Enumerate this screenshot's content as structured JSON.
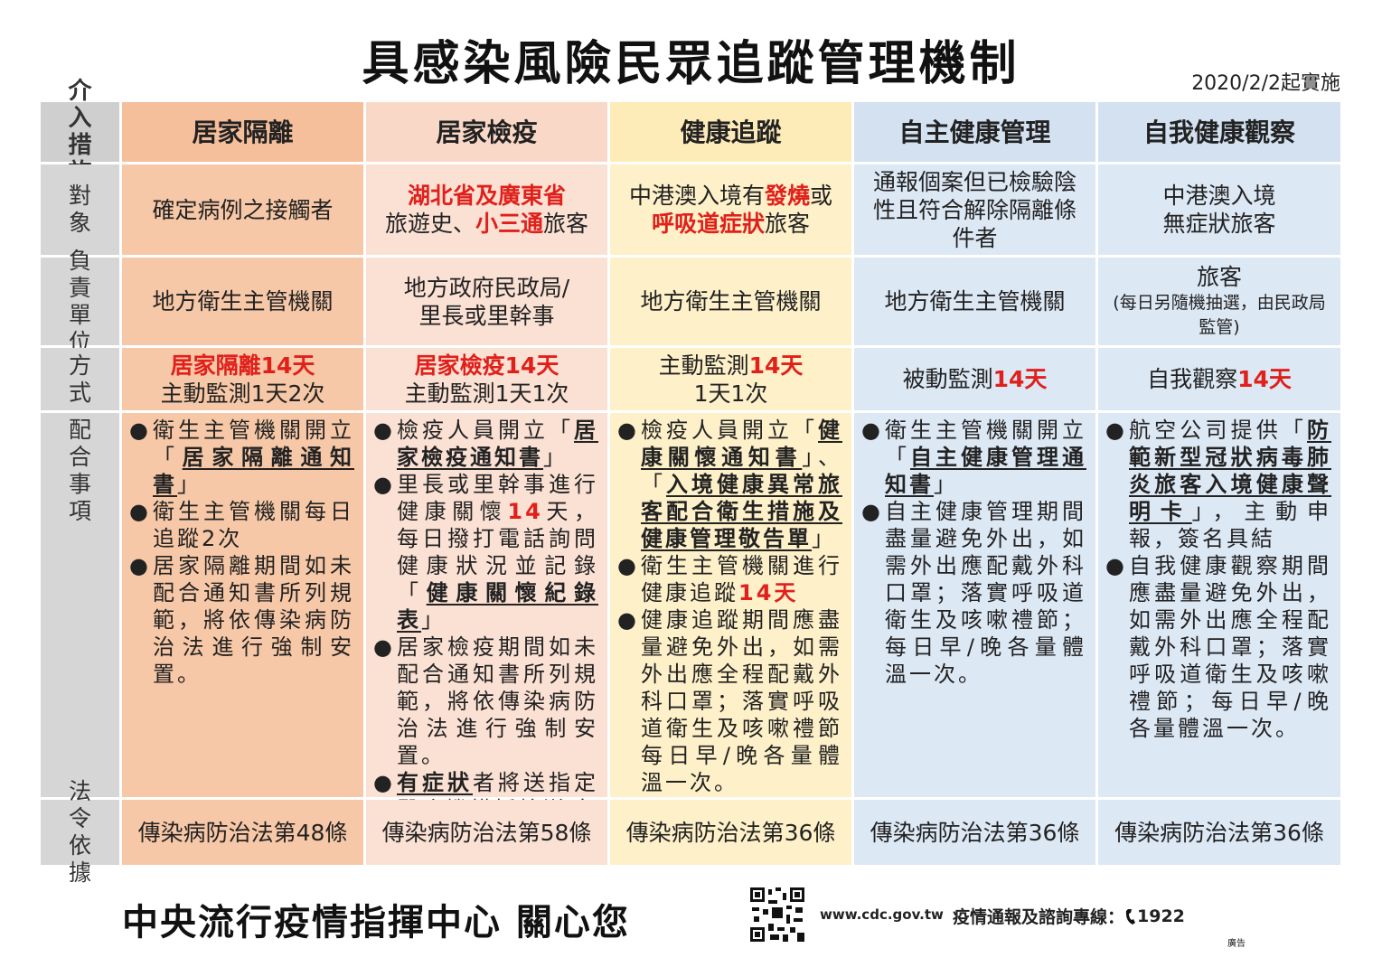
{
  "title": "具感染風險民眾追蹤管理機制",
  "effective_date": "2020/2/2起實施",
  "table": {
    "header": [
      "介入措施",
      "居家隔離",
      "居家檢疫",
      "健康追蹤",
      "自主健康管理",
      "自我健康觀察"
    ],
    "rows": [
      {
        "label": "對象",
        "cells": [
          [
            [
              "確定病例之接觸者"
            ]
          ],
          [
            [
              {
                "text": "湖北省及廣東省",
                "color": "#e0201b",
                "bold": true
              }
            ],
            [
              "旅遊史、",
              {
                "text": "小三通",
                "color": "#e0201b",
                "bold": true
              },
              "旅客"
            ]
          ],
          [
            [
              "中港澳入境有",
              {
                "text": "發燒",
                "color": "#e0201b",
                "bold": true
              },
              "或"
            ],
            [
              {
                "text": "呼吸道症狀",
                "color": "#e0201b",
                "bold": true
              },
              "旅客"
            ]
          ],
          [
            [
              "通報個案但已檢驗陰性且符合解除隔離條件者"
            ]
          ],
          [
            [
              "中港澳入境"
            ],
            [
              "無症狀旅客"
            ]
          ]
        ]
      },
      {
        "label": "負責單位",
        "cells": [
          [
            [
              "地方衛生主管機關"
            ]
          ],
          [
            [
              "地方政府民政局/"
            ],
            [
              "里長或里幹事"
            ]
          ],
          [
            [
              "地方衛生主管機關"
            ]
          ],
          [
            [
              "地方衛生主管機關"
            ]
          ],
          [
            [
              "旅客"
            ],
            [
              {
                "text": "(每日另隨機抽選，由民政局監管)",
                "small": true
              }
            ]
          ]
        ]
      },
      {
        "label": "方式",
        "cells": [
          [
            [
              {
                "text": "居家隔離14天",
                "color": "#e0201b",
                "bold": true
              }
            ],
            [
              "主動監測1天2次"
            ]
          ],
          [
            [
              {
                "text": "居家檢疫14天",
                "color": "#e0201b",
                "bold": true
              }
            ],
            [
              "主動監測1天1次"
            ]
          ],
          [
            [
              "主動監測",
              {
                "text": "14天",
                "color": "#e0201b",
                "bold": true
              }
            ],
            [
              "1天1次"
            ]
          ],
          [
            [
              "被動監測",
              {
                "text": "14天",
                "color": "#e0201b",
                "bold": true
              }
            ]
          ],
          [
            [
              "自我觀察",
              {
                "text": "14天",
                "color": "#e0201b",
                "bold": true
              }
            ]
          ]
        ]
      },
      {
        "label": "配合事項",
        "bullets": [
          [
            [
              "衛生主管機關開立「",
              {
                "text": "居家隔離通知書",
                "bold": true,
                "underline": true
              },
              "」"
            ],
            [
              "衛生主管機關每日追蹤2次"
            ],
            [
              "居家隔離期間如未配合通知書所列規範，將依傳染病防治法進行強制安置。"
            ]
          ],
          [
            [
              "檢疫人員開立「",
              {
                "text": "居家檢疫通知書",
                "bold": true,
                "underline": true
              },
              "」"
            ],
            [
              "里長或里幹事進行健康關懷",
              {
                "text": "14",
                "color": "#e0201b",
                "bold": true
              },
              "天，每日撥打電話詢問健康狀況並記錄「",
              {
                "text": "健康關懷紀錄表",
                "bold": true,
                "underline": true
              },
              "」"
            ],
            [
              "居家檢疫期間如未配合通知書所列規範，將依傳染病防治法進行強制安置。"
            ],
            [
              {
                "text": "有症狀",
                "bold": true,
                "underline": true
              },
              "者將送指定醫療機構採檢送驗"
            ]
          ],
          [
            [
              "檢疫人員開立「",
              {
                "text": "健康關懷通知書",
                "bold": true,
                "underline": true
              },
              "」、「",
              {
                "text": "入境健康異常旅客配合衛生措施及健康管理敬告單",
                "bold": true,
                "underline": true
              },
              "」"
            ],
            [
              "衛生主管機關進行健康追蹤",
              {
                "text": "14天",
                "color": "#e0201b",
                "bold": true
              }
            ],
            [
              "健康追蹤期間應盡量避免外出，如需外出應全程配戴外科口罩；落實呼吸道衛生及咳嗽禮節每日早/晚各量體溫一次。"
            ]
          ],
          [
            [
              "衛生主管機關開立「",
              {
                "text": "自主健康管理通知書",
                "bold": true,
                "underline": true
              },
              "」"
            ],
            [
              "自主健康管理期間盡量避免外出，如需外出應配戴外科口罩；落實呼吸道衛生及咳嗽禮節；每日早/晚各量體溫一次。"
            ]
          ],
          [
            [
              "航空公司提供「",
              {
                "text": "防範新型冠狀病毒肺炎旅客入境健康聲明卡",
                "bold": true,
                "underline": true
              },
              "」，主動申報，簽名具結"
            ],
            [
              "自我健康觀察期間應盡量避免外出，如需外出應全程配戴外科口罩；落實呼吸道衛生及咳嗽禮節；每日早/晚各量體溫一次。"
            ]
          ]
        ]
      },
      {
        "label": "法令依據",
        "cells": [
          [
            [
              "傳染病防治法第48條"
            ]
          ],
          [
            [
              "傳染病防治法第58條"
            ]
          ],
          [
            [
              "傳染病防治法第36條"
            ]
          ],
          [
            [
              "傳染病防治法第36條"
            ]
          ],
          [
            [
              "傳染病防治法第36條"
            ]
          ]
        ]
      }
    ]
  },
  "footer": {
    "slogan": "中央流行疫情指揮中心 關心您",
    "url": "www.cdc.gov.tw",
    "hotline_label": "疫情通報及諮詢專線：",
    "hotline": "1922",
    "ad": "廣告"
  }
}
